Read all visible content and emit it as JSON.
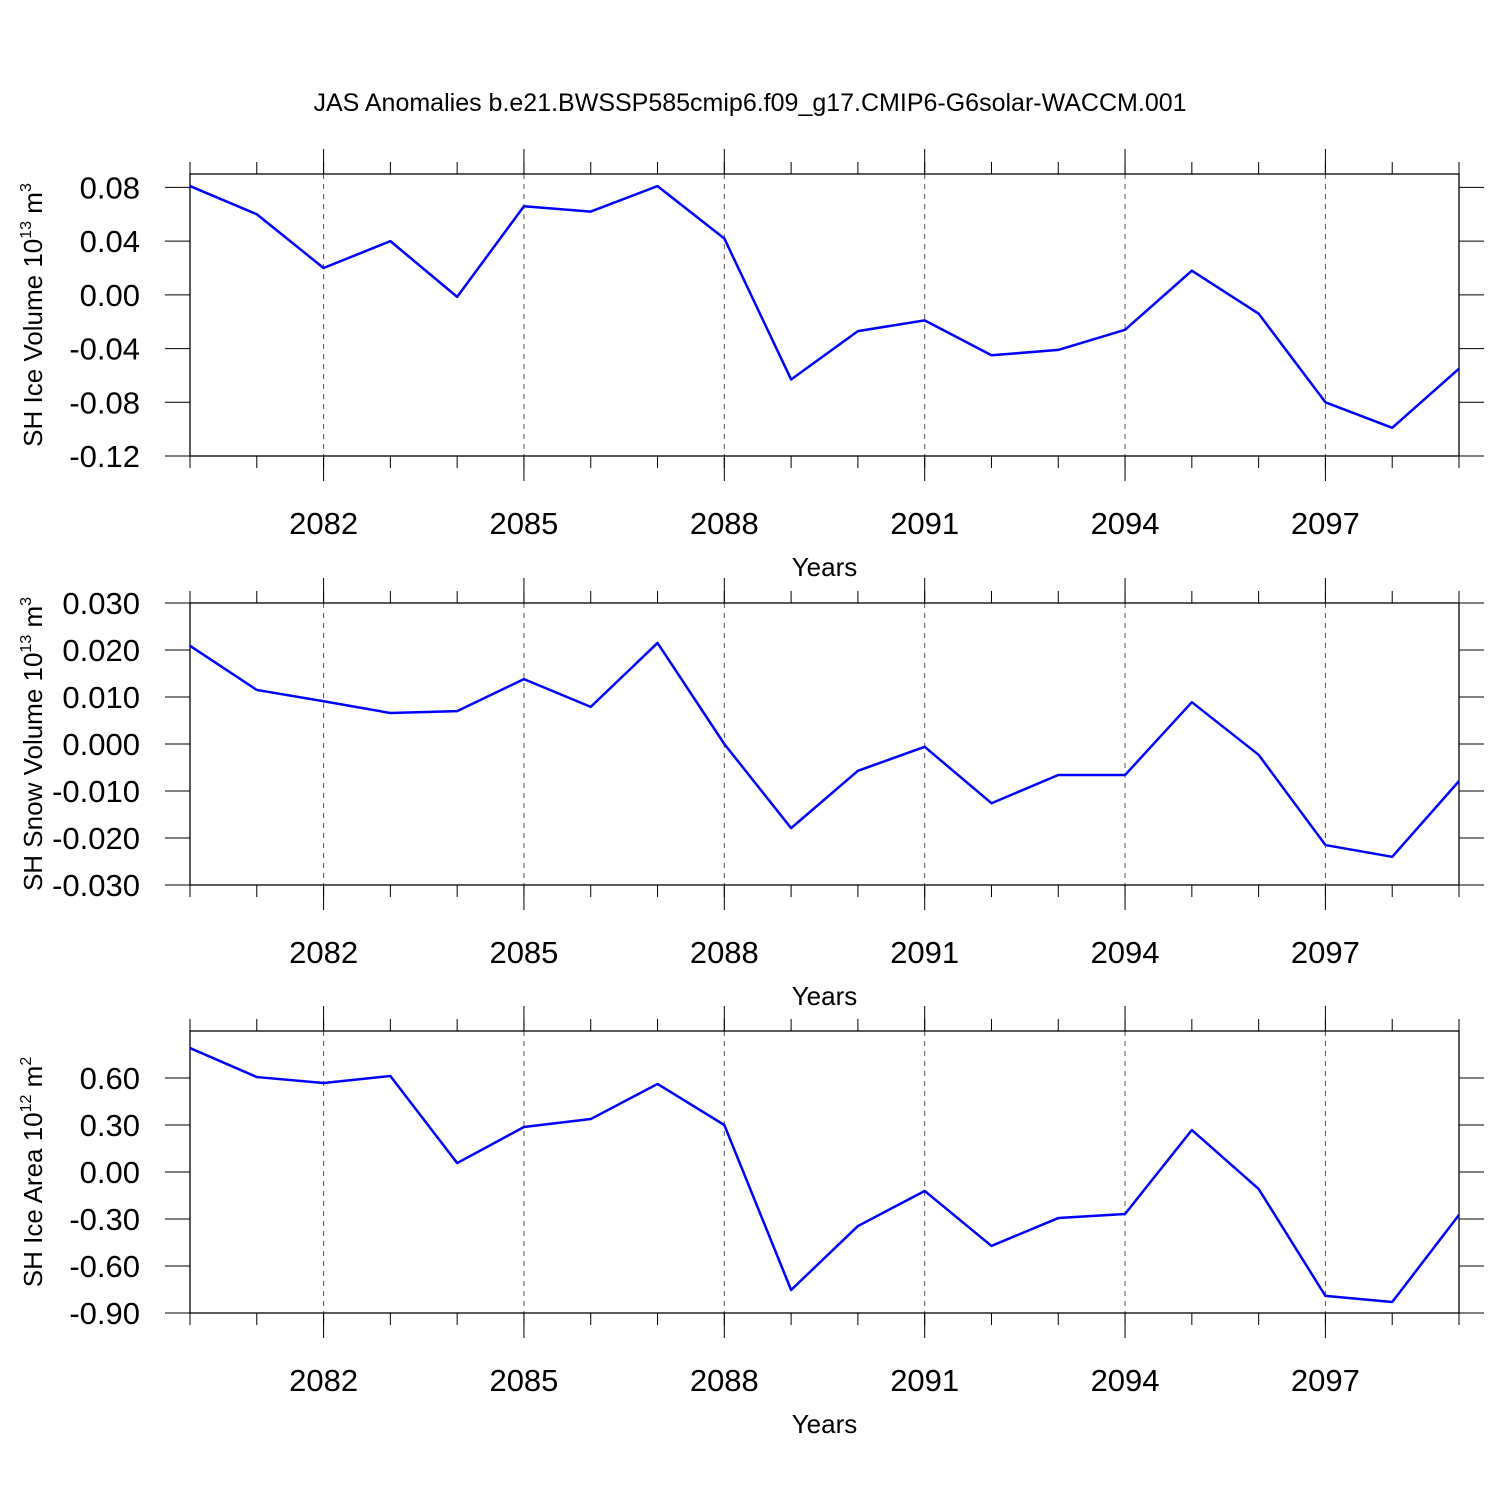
{
  "title": "JAS Anomalies b.e21.BWSSP585cmip6.f09_g17.CMIP6-G6solar-WACCM.001",
  "chart_data": [
    {
      "type": "line",
      "xlabel": "Years",
      "ylabel": [
        "SH Ice Volume 10",
        "13",
        " m",
        "3"
      ],
      "x": [
        2080,
        2081,
        2082,
        2083,
        2084,
        2085,
        2086,
        2087,
        2088,
        2089,
        2090,
        2091,
        2092,
        2093,
        2094,
        2095,
        2096,
        2097,
        2098,
        2099
      ],
      "xlim": [
        2080,
        2099
      ],
      "xticks": [
        2082,
        2085,
        2088,
        2091,
        2094,
        2097
      ],
      "xgrid": true,
      "ylim": [
        -0.12,
        0.09
      ],
      "yticks": [
        {
          "value": -0.12,
          "label": "-0.12"
        },
        {
          "value": -0.08,
          "label": "-0.08"
        },
        {
          "value": -0.04,
          "label": "-0.04"
        },
        {
          "value": 0,
          "label": "0.00"
        },
        {
          "value": 0.04,
          "label": "0.04"
        },
        {
          "value": 0.08,
          "label": "0.08"
        }
      ],
      "series": [
        {
          "color": "#0000ff",
          "values": [
            0.081,
            0.06,
            0.02,
            0.04,
            -0.0015,
            0.066,
            0.062,
            0.081,
            0.042,
            -0.063,
            -0.027,
            -0.019,
            -0.045,
            -0.041,
            -0.026,
            0.018,
            -0.014,
            -0.08,
            -0.099,
            -0.055
          ]
        }
      ]
    },
    {
      "type": "line",
      "xlabel": "Years",
      "ylabel": [
        "SH Snow Volume 10",
        "13",
        " m",
        "3"
      ],
      "x": [
        2080,
        2081,
        2082,
        2083,
        2084,
        2085,
        2086,
        2087,
        2088,
        2089,
        2090,
        2091,
        2092,
        2093,
        2094,
        2095,
        2096,
        2097,
        2098,
        2099
      ],
      "xlim": [
        2080,
        2099
      ],
      "xticks": [
        2082,
        2085,
        2088,
        2091,
        2094,
        2097
      ],
      "xgrid": true,
      "ylim": [
        -0.03,
        0.03
      ],
      "yticks": [
        {
          "value": -0.03,
          "label": "-0.030"
        },
        {
          "value": -0.02,
          "label": "-0.020"
        },
        {
          "value": -0.01,
          "label": "-0.010"
        },
        {
          "value": 0,
          "label": "0.000"
        },
        {
          "value": 0.01,
          "label": "0.010"
        },
        {
          "value": 0.02,
          "label": "0.020"
        },
        {
          "value": 0.03,
          "label": "0.030"
        }
      ],
      "series": [
        {
          "color": "#0000ff",
          "values": [
            0.0209,
            0.0115,
            0.0091,
            0.0066,
            0.007,
            0.0138,
            0.0079,
            0.0215,
            0.0,
            -0.0179,
            -0.0057,
            -0.0006,
            -0.0126,
            -0.0066,
            -0.0066,
            0.0089,
            -0.0023,
            -0.0215,
            -0.024,
            -0.0079
          ]
        }
      ]
    },
    {
      "type": "line",
      "xlabel": "Years",
      "ylabel": [
        "SH Ice Area 10",
        "12",
        " m",
        "2"
      ],
      "x": [
        2080,
        2081,
        2082,
        2083,
        2084,
        2085,
        2086,
        2087,
        2088,
        2089,
        2090,
        2091,
        2092,
        2093,
        2094,
        2095,
        2096,
        2097,
        2098,
        2099
      ],
      "xlim": [
        2080,
        2099
      ],
      "xticks": [
        2082,
        2085,
        2088,
        2091,
        2094,
        2097
      ],
      "xgrid": true,
      "ylim": [
        -0.9,
        0.9
      ],
      "yticks": [
        {
          "value": -0.9,
          "label": "-0.90"
        },
        {
          "value": -0.6,
          "label": "-0.60"
        },
        {
          "value": -0.3,
          "label": "-0.30"
        },
        {
          "value": 0,
          "label": "0.00"
        },
        {
          "value": 0.3,
          "label": "0.30"
        },
        {
          "value": 0.6,
          "label": "0.60"
        }
      ],
      "series": [
        {
          "color": "#0000ff",
          "values": [
            0.791,
            0.606,
            0.568,
            0.613,
            0.057,
            0.287,
            0.338,
            0.562,
            0.3,
            -0.753,
            -0.345,
            -0.121,
            -0.472,
            -0.294,
            -0.268,
            0.268,
            -0.108,
            -0.791,
            -0.83,
            -0.274
          ]
        }
      ]
    }
  ]
}
